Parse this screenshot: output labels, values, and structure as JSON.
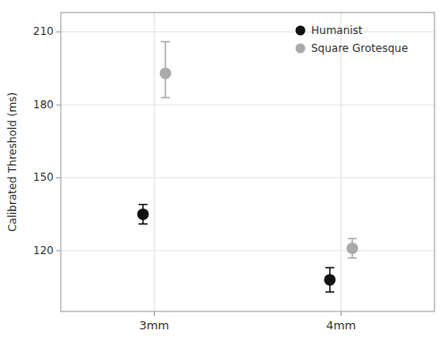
{
  "chart_data": {
    "type": "dot",
    "categories": [
      "3mm",
      "4mm"
    ],
    "series": [
      {
        "name": "Humanist",
        "color": "#111111",
        "values": [
          135,
          108
        ],
        "error_low": [
          4,
          5
        ],
        "error_high": [
          4,
          5
        ]
      },
      {
        "name": "Square Grotesque",
        "color": "#aaaaaa",
        "values": [
          193,
          121
        ],
        "error_low": [
          10,
          4
        ],
        "error_high": [
          13,
          4
        ]
      }
    ],
    "ylabel": "Calibrated Threshold (ms)",
    "ylim": [
      95,
      218
    ],
    "yticks": [
      120,
      150,
      180,
      210
    ],
    "grid": true,
    "legend": "upper right"
  }
}
